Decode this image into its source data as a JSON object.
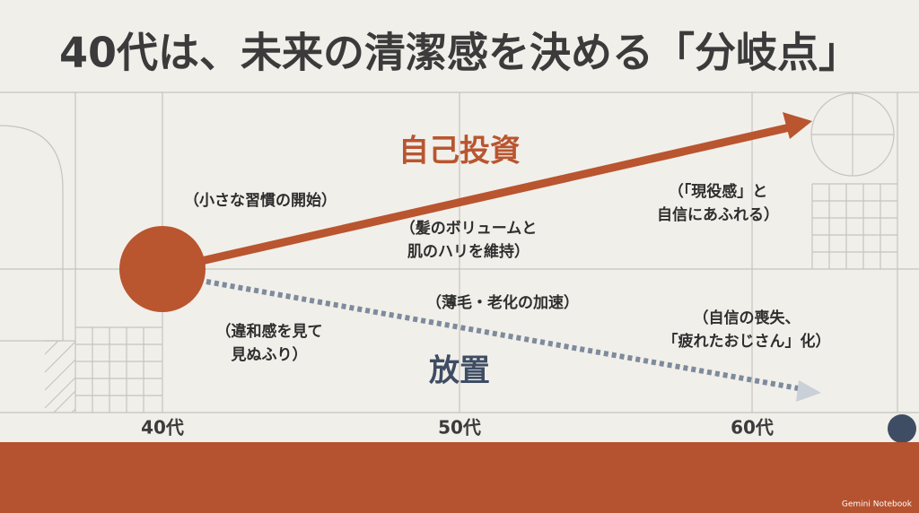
{
  "title": "40代は、未来の清潔感を決める「分岐点」",
  "branches": [
    {
      "label": "自己投資"
    },
    {
      "label": "放置"
    }
  ],
  "annotations": [
    {
      "lines": [
        "（小さな習慣の開始）"
      ]
    },
    {
      "lines": [
        "（髪のボリュームと",
        "肌のハリを維持）"
      ]
    },
    {
      "lines": [
        "（「現役感」と",
        "自信にあふれる）"
      ]
    },
    {
      "lines": [
        "（薄毛・老化の加速）"
      ]
    },
    {
      "lines": [
        "（違和感を見て",
        "見ぬふり）"
      ]
    },
    {
      "lines": [
        "（自信の喪失、",
        "「疲れたおじさん」化）"
      ]
    }
  ],
  "axis_labels": [
    "40代",
    "50代",
    "60代"
  ],
  "footer": "Gemini Notebook"
}
